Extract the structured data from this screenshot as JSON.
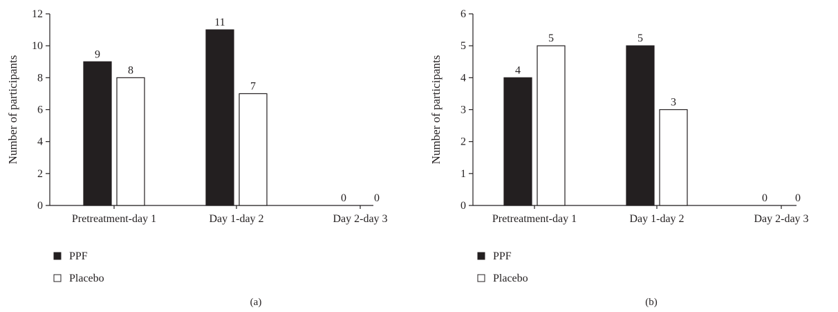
{
  "chart_data": [
    {
      "type": "bar",
      "panel_label": "(a)",
      "categories": [
        "Pretreatment-day 1",
        "Day 1-day 2",
        "Day 2-day 3"
      ],
      "series": [
        {
          "name": "PPF",
          "color": "#231f20",
          "values": [
            9,
            11,
            0
          ]
        },
        {
          "name": "Placebo",
          "color": "#ffffff",
          "values": [
            8,
            7,
            0
          ]
        }
      ],
      "ylabel": "Number of participants",
      "xlabel": "",
      "ylim": [
        0,
        12
      ],
      "yticks": [
        0,
        2,
        4,
        6,
        8,
        10,
        12
      ],
      "grid": false,
      "legend_position": "bottom-left"
    },
    {
      "type": "bar",
      "panel_label": "(b)",
      "categories": [
        "Pretreatment-day 1",
        "Day 1-day 2",
        "Day 2-day 3"
      ],
      "series": [
        {
          "name": "PPF",
          "color": "#231f20",
          "values": [
            4,
            5,
            0
          ]
        },
        {
          "name": "Placebo",
          "color": "#ffffff",
          "values": [
            5,
            3,
            0
          ]
        }
      ],
      "ylabel": "Number of participants",
      "xlabel": "",
      "ylim": [
        0,
        6
      ],
      "yticks": [
        0,
        1,
        2,
        3,
        4,
        5,
        6
      ],
      "grid": false,
      "legend_position": "bottom-left"
    }
  ]
}
